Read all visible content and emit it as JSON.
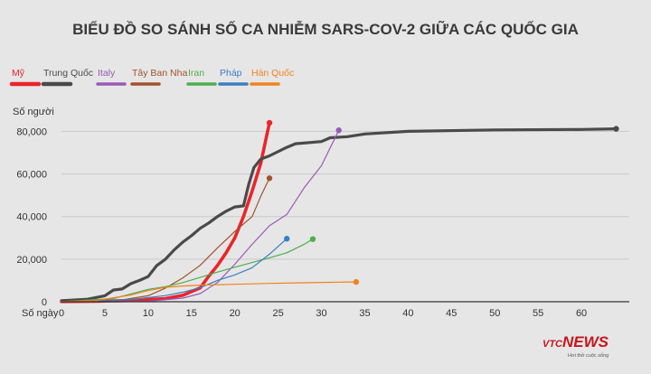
{
  "chart_data": {
    "type": "line",
    "title": "BIỂU ĐỒ SO SÁNH SỐ CA NHIỄM SARS-COV-2 GIỮA CÁC QUỐC GIA",
    "xlabel": "Số ngày",
    "ylabel": "Số người",
    "xlim": [
      0,
      65
    ],
    "ylim": [
      0,
      84000
    ],
    "xticks": [
      0,
      5,
      10,
      15,
      20,
      25,
      30,
      35,
      40,
      45,
      50,
      55,
      60
    ],
    "yticks": [
      0,
      20000,
      40000,
      60000,
      80000
    ],
    "ytick_labels": [
      "0",
      "20,000",
      "40,000",
      "60,000",
      "80,000"
    ],
    "grid": true,
    "legend_position": "top-left",
    "series": [
      {
        "name": "Mỹ",
        "color": "#e8262b",
        "values": [
          [
            0,
            100
          ],
          [
            4,
            200
          ],
          [
            8,
            600
          ],
          [
            12,
            1500
          ],
          [
            14,
            3000
          ],
          [
            16,
            6500
          ],
          [
            17,
            12000
          ],
          [
            18,
            17000
          ],
          [
            19,
            23000
          ],
          [
            20,
            30000
          ],
          [
            21,
            40000
          ],
          [
            22,
            52000
          ],
          [
            23,
            65000
          ],
          [
            24,
            84000
          ]
        ]
      },
      {
        "name": "Trung Quốc",
        "color": "#4a4a4a",
        "values": [
          [
            0,
            500
          ],
          [
            3,
            1200
          ],
          [
            5,
            2800
          ],
          [
            6,
            5500
          ],
          [
            7,
            6000
          ],
          [
            8,
            8500
          ],
          [
            9,
            10000
          ],
          [
            10,
            11800
          ],
          [
            11,
            17000
          ],
          [
            12,
            20000
          ],
          [
            13,
            24300
          ],
          [
            14,
            28000
          ],
          [
            15,
            31000
          ],
          [
            16,
            34500
          ],
          [
            17,
            37000
          ],
          [
            18,
            40000
          ],
          [
            19,
            42500
          ],
          [
            20,
            44500
          ],
          [
            21,
            45000
          ],
          [
            21.6,
            55000
          ],
          [
            22.2,
            63000
          ],
          [
            23,
            67000
          ],
          [
            24,
            68500
          ],
          [
            26,
            72500
          ],
          [
            27,
            74200
          ],
          [
            30,
            75200
          ],
          [
            31,
            77000
          ],
          [
            33,
            77500
          ],
          [
            35,
            78800
          ],
          [
            40,
            80000
          ],
          [
            50,
            80700
          ],
          [
            60,
            80900
          ],
          [
            64,
            81200
          ]
        ]
      },
      {
        "name": "Italy",
        "color": "#9b59b6",
        "values": [
          [
            0,
            3
          ],
          [
            10,
            200
          ],
          [
            14,
            1700
          ],
          [
            16,
            3800
          ],
          [
            18,
            9000
          ],
          [
            20,
            17600
          ],
          [
            22,
            27000
          ],
          [
            24,
            35700
          ],
          [
            26,
            41000
          ],
          [
            28,
            53500
          ],
          [
            30,
            63900
          ],
          [
            32,
            80500
          ]
        ]
      },
      {
        "name": "Tây Ban Nha",
        "color": "#a0522d",
        "values": [
          [
            0,
            2
          ],
          [
            6,
            200
          ],
          [
            10,
            2800
          ],
          [
            12,
            6400
          ],
          [
            14,
            11200
          ],
          [
            16,
            17100
          ],
          [
            18,
            25300
          ],
          [
            20,
            33000
          ],
          [
            22,
            40000
          ],
          [
            23,
            49500
          ],
          [
            24,
            58000
          ]
        ]
      },
      {
        "name": "Iran",
        "color": "#4caf50",
        "values": [
          [
            0,
            2
          ],
          [
            6,
            1500
          ],
          [
            10,
            5800
          ],
          [
            12,
            7100
          ],
          [
            14,
            9000
          ],
          [
            16,
            11400
          ],
          [
            18,
            13900
          ],
          [
            20,
            16200
          ],
          [
            22,
            18400
          ],
          [
            24,
            20600
          ],
          [
            26,
            23000
          ],
          [
            28,
            27000
          ],
          [
            29,
            29400
          ]
        ]
      },
      {
        "name": "Pháp",
        "color": "#3a7fc4",
        "values": [
          [
            0,
            12
          ],
          [
            8,
            1000
          ],
          [
            12,
            2900
          ],
          [
            14,
            4500
          ],
          [
            16,
            6600
          ],
          [
            18,
            10000
          ],
          [
            20,
            12600
          ],
          [
            22,
            16000
          ],
          [
            24,
            22300
          ],
          [
            26,
            29600
          ]
        ]
      },
      {
        "name": "Hàn Quốc",
        "color": "#f0821e",
        "values": [
          [
            0,
            30
          ],
          [
            4,
            600
          ],
          [
            8,
            3150
          ],
          [
            10,
            5200
          ],
          [
            12,
            6800
          ],
          [
            14,
            7400
          ],
          [
            16,
            7800
          ],
          [
            20,
            8200
          ],
          [
            24,
            8600
          ],
          [
            28,
            8900
          ],
          [
            32,
            9200
          ],
          [
            34,
            9300
          ]
        ]
      }
    ]
  },
  "brand": {
    "logo_prefix": "VTC",
    "logo_main": "NEWS",
    "tagline": "Hơi thở cuộc sống"
  }
}
